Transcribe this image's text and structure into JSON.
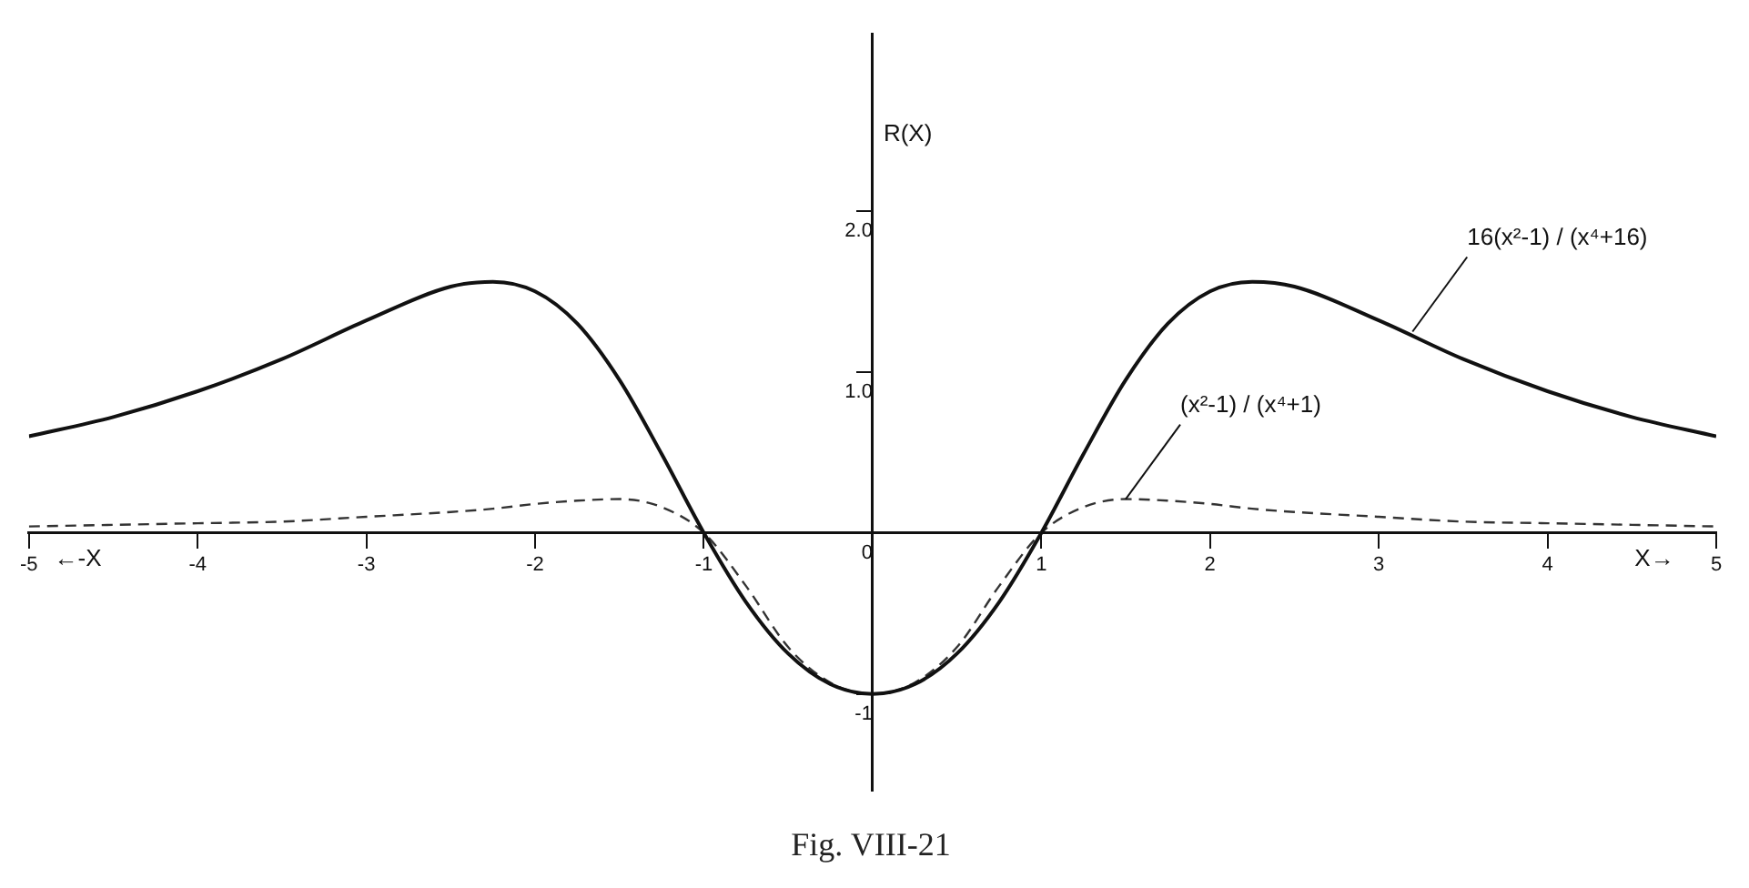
{
  "chart_data": {
    "type": "line",
    "title": "Fig. VIII-21",
    "xlabel": "X→",
    "ylabel": "R(X)",
    "x": [
      -5,
      -4.5,
      -4,
      -3.5,
      -3,
      -2.5,
      -2.25,
      -2,
      -1.75,
      -1.5,
      -1.25,
      -1,
      -0.75,
      -0.5,
      -0.25,
      0,
      0.25,
      0.5,
      0.75,
      1,
      1.25,
      1.5,
      1.75,
      2,
      2.25,
      2.5,
      3,
      3.5,
      4,
      4.5,
      5
    ],
    "series": [
      {
        "color": "#111111",
        "line_style": "solid",
        "values": [
          0.6,
          0.72,
          0.88,
          1.08,
          1.32,
          1.53,
          1.56,
          1.5,
          1.3,
          0.95,
          0.49,
          0,
          -0.43,
          -0.75,
          -0.94,
          -1,
          -0.94,
          -0.75,
          -0.43,
          0,
          0.49,
          0.95,
          1.3,
          1.5,
          1.56,
          1.53,
          1.32,
          1.08,
          0.88,
          0.72,
          0.6
        ]
      },
      {
        "color": "#333333",
        "line_style": "dashed",
        "values": [
          0.04,
          0.05,
          0.06,
          0.07,
          0.1,
          0.13,
          0.15,
          0.18,
          0.2,
          0.21,
          0.16,
          0,
          -0.33,
          -0.71,
          -0.93,
          -1,
          -0.93,
          -0.71,
          -0.33,
          0,
          0.16,
          0.21,
          0.2,
          0.18,
          0.15,
          0.13,
          0.1,
          0.07,
          0.06,
          0.05,
          0.04
        ]
      }
    ],
    "xlim": [
      -5,
      5
    ],
    "xticks": [
      -5,
      -4,
      -3,
      -2,
      -1,
      1,
      2,
      3,
      4,
      5
    ],
    "ylim": [
      -1.6,
      3.1
    ],
    "yticks": [
      {
        "value": -1,
        "label": "-1"
      },
      0,
      {
        "value": 1,
        "label": "1.0"
      },
      {
        "value": 2,
        "label": "2.0"
      }
    ],
    "annotations": [
      {
        "text": "16(x²-1) / (x⁴+16)",
        "x": 3.2,
        "y": 1.25
      },
      {
        "text": "(x²-1) / (x⁴+1)",
        "x": 1.5,
        "y": 0.21
      },
      "←-X"
    ],
    "grid": false,
    "legend": false
  }
}
